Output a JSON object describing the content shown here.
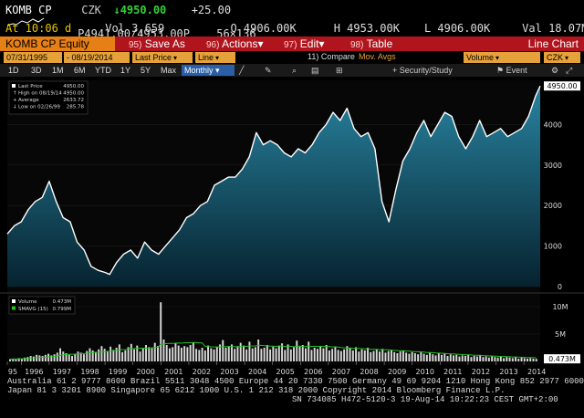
{
  "ticker": {
    "symbol": "KOMB CP",
    "currency": "CZK",
    "last": "↓4950.00",
    "change": "+25.00",
    "bid_ask": "P4941.00/4953.00P",
    "size": "56×136"
  },
  "quote": {
    "at": "At 10:06 d",
    "vol": "Vol 3,659",
    "open": "O 4906.00K",
    "high": "H 4953.00K",
    "low": "L 4906.00K",
    "val": "Val 18.07M"
  },
  "menubar": {
    "title": "KOMB CP Equity",
    "save": "Save As",
    "save_num": "95)",
    "actions": "Actions",
    "actions_num": "96)",
    "edit": "Edit",
    "edit_num": "97)",
    "table": "Table",
    "table_num": "98)",
    "right": "Line Chart"
  },
  "params": {
    "start": "07/31/1995",
    "end": "08/19/2014",
    "field": "Last Price",
    "style": "Line",
    "compare": "11) Compare",
    "mov_avgs": "Mov. Avgs",
    "volume": "Volume",
    "currency": "CZK"
  },
  "tabs": {
    "items": [
      "1D",
      "3D",
      "1M",
      "6M",
      "YTD",
      "1Y",
      "5Y",
      "Max",
      "Monthly"
    ],
    "security_study": "Security/Study",
    "event": "Event"
  },
  "legend": {
    "last_price": "Last Price",
    "last_price_val": "4950.00",
    "high": "High on 08/19/14",
    "high_val": "4950.00",
    "average": "Average",
    "average_val": "2633.72",
    "low": "Low on 02/26/99",
    "low_val": "285.78"
  },
  "vol_legend": {
    "volume": "Volume",
    "volume_val": "0.473M",
    "smavg": "SMAVG (15)",
    "smavg_val": "0.799M"
  },
  "colors": {
    "line": "#ffffff",
    "fill_top": "#1f6d8a",
    "fill_bottom": "#062431",
    "accent_orange": "#e67f16",
    "menubar_red": "#b0141d",
    "smavg": "#22c020"
  },
  "chart_data": {
    "type": "area",
    "x": [
      "1995-07",
      "1995-10",
      "1996-01",
      "1996-04",
      "1996-07",
      "1996-10",
      "1997-01",
      "1997-04",
      "1997-07",
      "1997-10",
      "1998-01",
      "1998-04",
      "1998-07",
      "1998-10",
      "1999-01",
      "1999-03",
      "1999-06",
      "1999-09",
      "1999-12",
      "2000-03",
      "2000-06",
      "2000-09",
      "2000-12",
      "2001-03",
      "2001-06",
      "2001-09",
      "2001-12",
      "2002-03",
      "2002-06",
      "2002-09",
      "2002-12",
      "2003-03",
      "2003-06",
      "2003-09",
      "2003-12",
      "2004-03",
      "2004-06",
      "2004-09",
      "2004-12",
      "2005-03",
      "2005-06",
      "2005-09",
      "2005-12",
      "2006-03",
      "2006-06",
      "2006-09",
      "2006-12",
      "2007-03",
      "2007-06",
      "2007-09",
      "2007-12",
      "2008-03",
      "2008-06",
      "2008-09",
      "2008-12",
      "2009-03",
      "2009-06",
      "2009-09",
      "2009-12",
      "2010-03",
      "2010-06",
      "2010-09",
      "2010-12",
      "2011-03",
      "2011-06",
      "2011-09",
      "2011-12",
      "2012-03",
      "2012-06",
      "2012-09",
      "2012-12",
      "2013-03",
      "2013-06",
      "2013-09",
      "2013-12",
      "2014-03",
      "2014-06",
      "2014-08"
    ],
    "y": [
      1300,
      1500,
      1600,
      1900,
      2100,
      2200,
      2600,
      2100,
      1700,
      1600,
      1100,
      900,
      500,
      400,
      350,
      300,
      600,
      800,
      900,
      700,
      1100,
      900,
      800,
      1000,
      1200,
      1400,
      1700,
      1800,
      2000,
      2100,
      2500,
      2600,
      2700,
      2700,
      2900,
      3200,
      3800,
      3500,
      3600,
      3500,
      3300,
      3200,
      3400,
      3300,
      3500,
      3800,
      4000,
      4300,
      4100,
      4400,
      3900,
      3700,
      3800,
      3400,
      2100,
      1600,
      2400,
      3100,
      3400,
      3800,
      4100,
      3700,
      4000,
      4300,
      4200,
      3700,
      3400,
      3700,
      4100,
      3700,
      3800,
      3900,
      3700,
      3800,
      3900,
      4200,
      4700,
      4950
    ],
    "ylim": [
      0,
      5000
    ],
    "y_ticks": [
      0,
      1000,
      2000,
      3000,
      4000
    ],
    "y_tick_labels": [
      "0",
      "1000",
      "2000",
      "3000",
      "4000"
    ],
    "last_label": "4950.00",
    "x_tick_labels": [
      "95",
      "1996",
      "1997",
      "1998",
      "1999",
      "2000",
      "2001",
      "2002",
      "2003",
      "2004",
      "2005",
      "2006",
      "2007",
      "2008",
      "2009",
      "2010",
      "2011",
      "2012",
      "2013",
      "2014"
    ],
    "x_tick_values": [
      "1995-07",
      "1996-01",
      "1997-01",
      "1998-01",
      "1999-01",
      "2000-01",
      "2001-01",
      "2002-01",
      "2003-01",
      "2004-01",
      "2005-01",
      "2006-01",
      "2007-01",
      "2008-01",
      "2009-01",
      "2010-01",
      "2011-01",
      "2012-01",
      "2013-01",
      "2014-01"
    ],
    "volume": {
      "unit": "M",
      "y_tick_labels": [
        "10M",
        "5M"
      ],
      "y_ticks": [
        10,
        5
      ],
      "ylim": [
        0,
        12
      ],
      "last_label": "0.473M",
      "values": [
        0.4,
        0.5,
        0.4,
        0.6,
        0.5,
        0.7,
        0.8,
        1.0,
        0.9,
        1.2,
        1.1,
        1.0,
        1.2,
        1.4,
        1.1,
        1.3,
        1.6,
        2.4,
        1.8,
        1.5,
        1.2,
        1.0,
        1.4,
        1.8,
        1.6,
        1.3,
        1.9,
        2.4,
        2.0,
        1.7,
        2.2,
        2.8,
        2.3,
        1.9,
        2.7,
        2.1,
        2.5,
        3.1,
        1.7,
        2.0,
        2.6,
        3.2,
        2.2,
        2.9,
        1.8,
        2.4,
        3.0,
        2.6,
        2.4,
        3.4,
        2.8,
        10.8,
        4.0,
        3.0,
        2.4,
        2.6,
        3.4,
        2.9,
        2.5,
        2.8,
        2.6,
        3.0,
        3.5,
        2.3,
        2.1,
        2.5,
        2.0,
        2.9,
        2.4,
        2.2,
        2.6,
        3.1,
        3.9,
        2.5,
        2.8,
        3.1,
        2.3,
        2.8,
        3.4,
        2.9,
        2.2,
        3.6,
        2.4,
        2.6,
        4.0,
        2.3,
        2.5,
        3.0,
        2.2,
        2.7,
        2.4,
        2.9,
        3.3,
        2.1,
        3.1,
        2.2,
        2.6,
        3.8,
        2.7,
        3.0,
        2.4,
        3.6,
        2.1,
        2.5,
        2.3,
        2.8,
        2.4,
        3.0,
        2.0,
        2.3,
        2.6,
        2.1,
        1.9,
        2.2,
        2.8,
        2.4,
        2.0,
        2.6,
        1.8,
        2.2,
        2.0,
        2.5,
        1.7,
        1.9,
        2.2,
        1.8,
        2.3,
        1.6,
        1.9,
        2.1,
        1.7,
        1.5,
        1.8,
        2.0,
        1.6,
        1.4,
        1.7,
        1.5,
        1.3,
        1.8,
        1.4,
        1.2,
        1.6,
        1.3,
        1.1,
        1.5,
        1.2,
        1.4,
        1.0,
        1.3,
        1.1,
        1.2,
        0.9,
        1.1,
        1.0,
        1.2,
        0.8,
        1.0,
        0.9,
        1.1,
        0.8,
        0.9,
        0.7,
        0.9,
        0.8,
        0.7,
        0.9,
        0.6,
        0.8,
        0.7,
        0.6,
        0.8,
        0.5,
        0.7,
        0.6,
        0.5,
        0.6,
        0.5,
        0.473
      ]
    }
  },
  "footer": {
    "line1": "Australia 61 2 9777 8600 Brazil 5511 3048 4500 Europe 44 20 7330 7500 Germany 49 69 9204 1210 Hong Kong 852 2977 6000",
    "line2": "Japan 81 3 3201 8900        Singapore 65 6212 1000         U.S. 1 212 318 2000          Copyright 2014 Bloomberg Finance L.P.",
    "line3": "SN 734085 H472-5120-3 19-Aug-14 10:22:23 CEST GMT+2:00"
  }
}
